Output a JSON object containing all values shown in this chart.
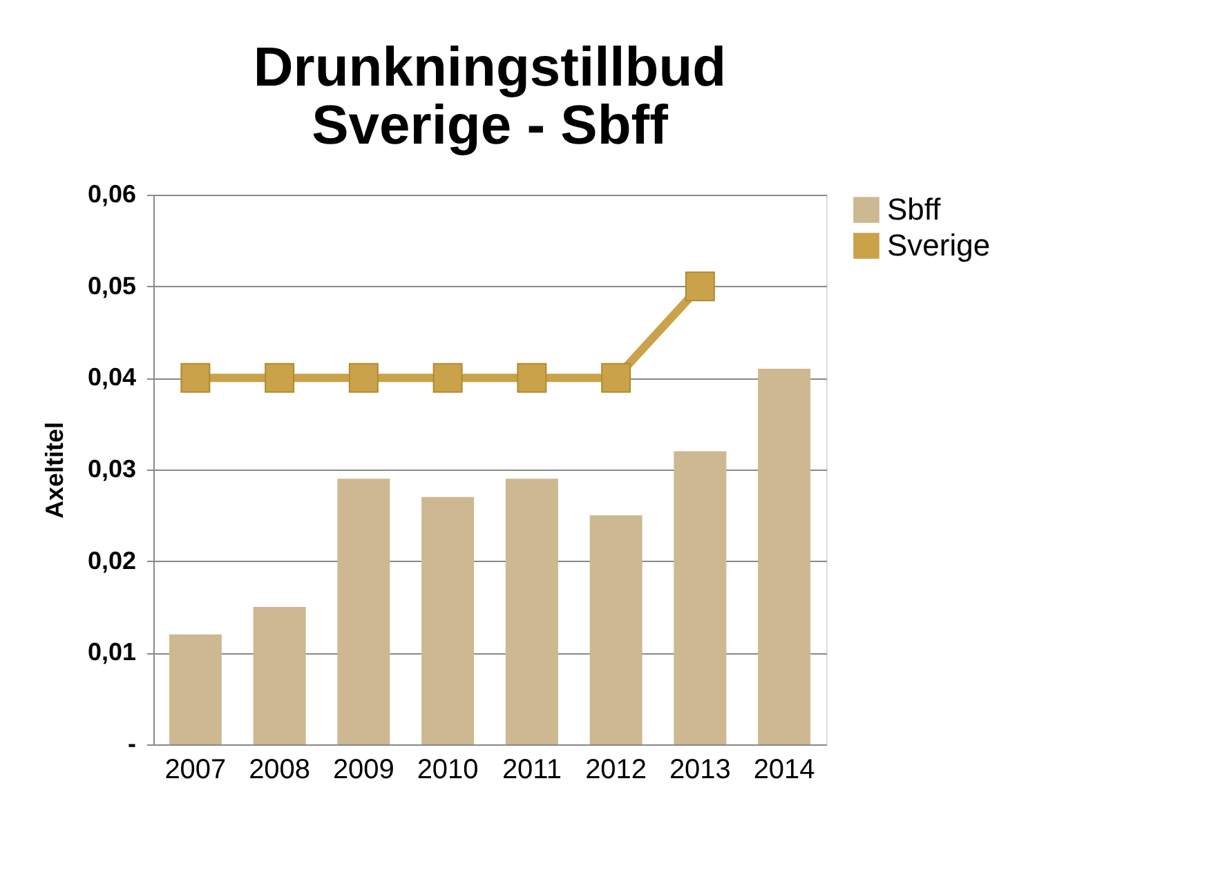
{
  "chart_data": {
    "type": "bar",
    "title": "Drunkningstillbud\nSverige - Sbff",
    "ylabel": "Axeltitel",
    "categories": [
      "2007",
      "2008",
      "2009",
      "2010",
      "2011",
      "2012",
      "2013",
      "2014"
    ],
    "series": [
      {
        "name": "Sbff",
        "color": "#cdb892",
        "values": [
          0.012,
          0.015,
          0.029,
          0.027,
          0.029,
          0.025,
          0.032,
          0.041
        ]
      },
      {
        "name": "Sverige",
        "type": "line",
        "color": "#c9a24a",
        "marker": "square",
        "values": [
          0.04,
          0.04,
          0.04,
          0.04,
          0.04,
          0.04,
          0.05,
          null
        ]
      }
    ],
    "ylim": [
      0,
      0.06
    ],
    "yticks": [
      {
        "value": 0,
        "label": "-"
      },
      {
        "value": 0.01,
        "label": "0,01"
      },
      {
        "value": 0.02,
        "label": "0,02"
      },
      {
        "value": 0.03,
        "label": "0,03"
      },
      {
        "value": 0.04,
        "label": "0,04"
      },
      {
        "value": 0.05,
        "label": "0,05"
      },
      {
        "value": 0.06,
        "label": "0,06"
      }
    ],
    "grid": "y",
    "legend": "right"
  }
}
